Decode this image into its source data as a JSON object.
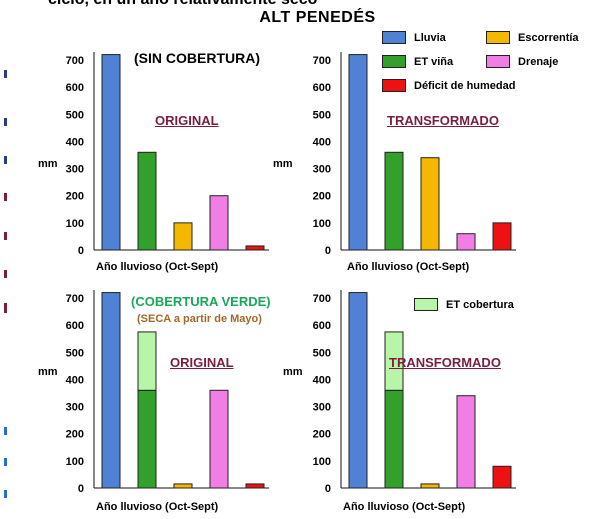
{
  "header": {
    "cut_text": "ciclo, en un año relativamente seco",
    "title": "ALT  PENEDÉS"
  },
  "legend": {
    "top": [
      {
        "label": "Lluvia",
        "color": "#4f81d4"
      },
      {
        "label": "Escorrentía",
        "color": "#f5b800"
      },
      {
        "label": "ET viña",
        "color": "#33a02c"
      },
      {
        "label": "Drenaje",
        "color": "#f07ee4"
      },
      {
        "label": "Déficit de humedad",
        "color": "#ee1111"
      }
    ],
    "bottom": [
      {
        "label": "ET cobertura",
        "color": "#b8f5a8"
      }
    ]
  },
  "annotations": {
    "sin_cobertura": "(SIN COBERTURA)",
    "cobertura_verde": "(COBERTURA VERDE)",
    "seca": "(SECA a partir de Mayo)"
  },
  "colors": {
    "lluvia": "#4f81d4",
    "et_vina": "#33a02c",
    "escorrentia": "#f5b800",
    "drenaje": "#f07ee4",
    "deficit": "#ee1111",
    "et_cobertura": "#b8f5a8",
    "label_dark_red": "#7b1d3f",
    "cobertura_green": "#19a85a",
    "seca_brown": "#a0692a"
  },
  "chart_data": [
    {
      "type": "bar",
      "title": "ORIGINAL",
      "xlabel": "Año lluvioso  (Oct-Sept)",
      "ylabel": "mm",
      "ylim": [
        0,
        700
      ],
      "yticks": [
        0,
        100,
        200,
        300,
        400,
        500,
        600,
        700
      ],
      "categories": [
        "Lluvia",
        "ET viña",
        "Escorrentía",
        "Drenaje",
        "Déficit de humedad"
      ],
      "values": [
        720,
        360,
        100,
        200,
        15
      ],
      "colors": [
        "#4f81d4",
        "#33a02c",
        "#f5b800",
        "#f07ee4",
        "#ee1111"
      ]
    },
    {
      "type": "bar",
      "title": "TRANSFORMADO",
      "xlabel": "Año lluvioso  (Oct-Sept)",
      "ylabel": "mm",
      "ylim": [
        0,
        700
      ],
      "yticks": [
        0,
        100,
        200,
        300,
        400,
        500,
        600,
        700
      ],
      "categories": [
        "Lluvia",
        "ET viña",
        "Escorrentía",
        "Drenaje",
        "Déficit de humedad"
      ],
      "values": [
        720,
        360,
        340,
        60,
        100
      ],
      "colors": [
        "#4f81d4",
        "#33a02c",
        "#f5b800",
        "#f07ee4",
        "#ee1111"
      ]
    },
    {
      "type": "bar",
      "title": "ORIGINAL",
      "xlabel": "Año lluvioso  (Oct-Sept)",
      "ylabel": "mm",
      "ylim": [
        0,
        700
      ],
      "yticks": [
        0,
        100,
        200,
        300,
        400,
        500,
        600,
        700
      ],
      "categories": [
        "Lluvia",
        "ET viña + ET cobertura",
        "Escorrentía",
        "Drenaje",
        "Déficit de humedad"
      ],
      "values": [
        720,
        360,
        15,
        360,
        15
      ],
      "stacked_extra": [
        0,
        215,
        0,
        0,
        0
      ],
      "colors": [
        "#4f81d4",
        "#33a02c",
        "#f5b800",
        "#f07ee4",
        "#ee1111"
      ],
      "extra_color": "#b8f5a8"
    },
    {
      "type": "bar",
      "title": "TRANSFORMADO",
      "xlabel": "Año lluvioso  (Oct-Sept)",
      "ylabel": "mm",
      "ylim": [
        0,
        700
      ],
      "yticks": [
        0,
        100,
        200,
        300,
        400,
        500,
        600,
        700
      ],
      "categories": [
        "Lluvia",
        "ET viña + ET cobertura",
        "Escorrentía",
        "Drenaje",
        "Déficit de humedad"
      ],
      "values": [
        720,
        360,
        15,
        340,
        80
      ],
      "stacked_extra": [
        0,
        215,
        0,
        0,
        0
      ],
      "colors": [
        "#4f81d4",
        "#33a02c",
        "#f5b800",
        "#f07ee4",
        "#ee1111"
      ],
      "extra_color": "#b8f5a8"
    }
  ]
}
